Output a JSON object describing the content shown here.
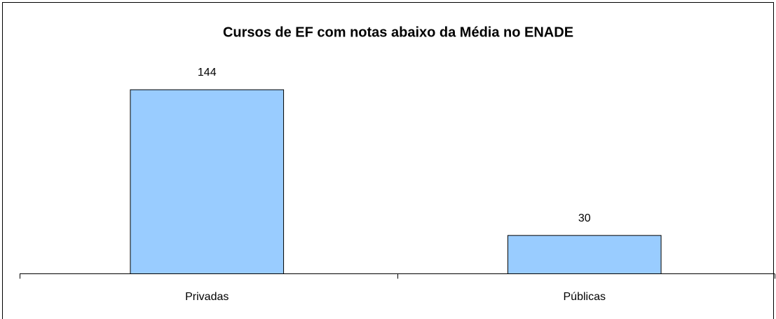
{
  "chart_data": {
    "type": "bar",
    "title": "Cursos de EF com notas abaixo da Média no ENADE",
    "categories": [
      "Privadas",
      "Públicas"
    ],
    "values": [
      144,
      30
    ],
    "color": "#99ccff"
  }
}
